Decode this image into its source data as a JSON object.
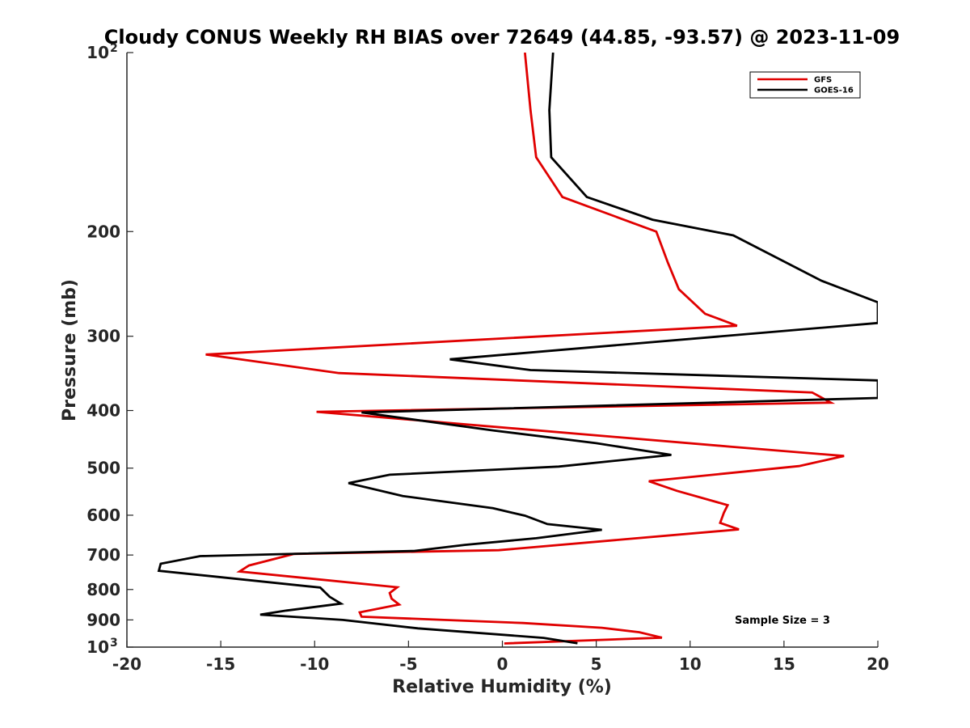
{
  "chart_data": {
    "type": "line",
    "title": "Cloudy CONUS Weekly RH BIAS over 72649 (44.85, -93.57) @ 2023-11-09",
    "xlabel": "Relative Humidity (%)",
    "ylabel": "Pressure (mb)",
    "xlim": [
      -20,
      20
    ],
    "ylim": [
      100,
      1000
    ],
    "y_scale": "log",
    "y_reversed": true,
    "x_ticks": [
      "-20",
      "-15",
      "-10",
      "-5",
      "0",
      "5",
      "10",
      "15",
      "20"
    ],
    "y_ticks": [
      {
        "value": 100,
        "label": "10",
        "exp": "2"
      },
      {
        "value": 200,
        "label": "200"
      },
      {
        "value": 300,
        "label": "300"
      },
      {
        "value": 400,
        "label": "400"
      },
      {
        "value": 500,
        "label": "500"
      },
      {
        "value": 600,
        "label": "600"
      },
      {
        "value": 700,
        "label": "700"
      },
      {
        "value": 800,
        "label": "800"
      },
      {
        "value": 900,
        "label": "900"
      },
      {
        "value": 1000,
        "label": "10",
        "exp": "3"
      }
    ],
    "grid": false,
    "legend_position": "top-right",
    "annotation": "Sample Size = 3",
    "series": [
      {
        "name": "GFS",
        "color": "#e00000",
        "points": [
          [
            1.2,
            100
          ],
          [
            1.5,
            125
          ],
          [
            1.8,
            150
          ],
          [
            3.2,
            175
          ],
          [
            8.2,
            200
          ],
          [
            8.8,
            225
          ],
          [
            9.4,
            250
          ],
          [
            10.8,
            275
          ],
          [
            12.5,
            288
          ],
          [
            -15.8,
            322
          ],
          [
            -8.7,
            346
          ],
          [
            16.5,
            373
          ],
          [
            17.5,
            388
          ],
          [
            -9.9,
            402
          ],
          [
            12.1,
            460
          ],
          [
            18.2,
            477
          ],
          [
            15.8,
            496
          ],
          [
            7.8,
            526
          ],
          [
            9.3,
            546
          ],
          [
            12.0,
            577
          ],
          [
            11.8,
            594
          ],
          [
            11.6,
            618
          ],
          [
            12.6,
            634
          ],
          [
            -0.2,
            687
          ],
          [
            -11.1,
            697
          ],
          [
            -13.5,
            729
          ],
          [
            -14.0,
            746
          ],
          [
            -5.6,
            793
          ],
          [
            -6.0,
            811
          ],
          [
            -5.9,
            829
          ],
          [
            -5.5,
            848
          ],
          [
            -7.6,
            874
          ],
          [
            -7.5,
            889
          ],
          [
            1.1,
            911
          ],
          [
            5.3,
            928
          ],
          [
            7.3,
            944
          ],
          [
            8.5,
            964
          ],
          [
            0.1,
            986
          ]
        ]
      },
      {
        "name": "GOES-16",
        "color": "#000000",
        "points": [
          [
            2.7,
            100
          ],
          [
            2.5,
            125
          ],
          [
            2.6,
            150
          ],
          [
            4.5,
            175
          ],
          [
            8.0,
            191
          ],
          [
            12.3,
            203
          ],
          [
            17.0,
            242
          ],
          [
            20.0,
            263
          ],
          [
            20.0,
            285
          ],
          [
            -2.8,
            328
          ],
          [
            1.5,
            342
          ],
          [
            20.0,
            356
          ],
          [
            20.0,
            381
          ],
          [
            -7.5,
            403
          ],
          [
            -0.5,
            432
          ],
          [
            5.0,
            454
          ],
          [
            9.0,
            475
          ],
          [
            3.0,
            497
          ],
          [
            -6.0,
            513
          ],
          [
            -8.2,
            530
          ],
          [
            -5.3,
            557
          ],
          [
            -0.5,
            584
          ],
          [
            1.2,
            601
          ],
          [
            2.4,
            621
          ],
          [
            5.3,
            635
          ],
          [
            1.8,
            656
          ],
          [
            -2.0,
            673
          ],
          [
            -4.7,
            689
          ],
          [
            -16.1,
            703
          ],
          [
            -18.2,
            724
          ],
          [
            -18.3,
            744
          ],
          [
            -9.7,
            794
          ],
          [
            -9.2,
            823
          ],
          [
            -8.6,
            845
          ],
          [
            -11.5,
            868
          ],
          [
            -12.9,
            882
          ],
          [
            -8.5,
            900
          ],
          [
            -4.5,
            930
          ],
          [
            2.2,
            965
          ],
          [
            4.0,
            985
          ]
        ]
      }
    ]
  }
}
